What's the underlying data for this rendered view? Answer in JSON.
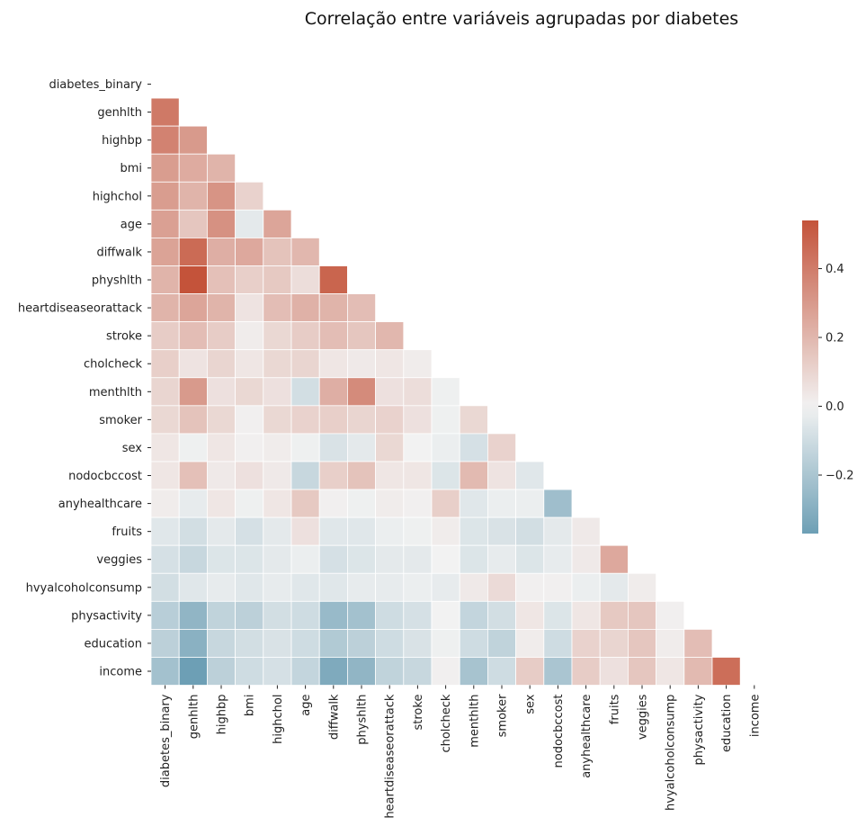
{
  "chart_data": {
    "type": "heatmap",
    "title": "Correlação entre variáveis agrupadas por diabetes",
    "variables": [
      "diabetes_binary",
      "genhlth",
      "highbp",
      "bmi",
      "highchol",
      "age",
      "diffwalk",
      "physhlth",
      "heartdiseaseorattack",
      "stroke",
      "cholcheck",
      "menthlth",
      "smoker",
      "sex",
      "nodocbccost",
      "anyhealthcare",
      "fruits",
      "veggies",
      "hvyalcoholconsump",
      "physactivity",
      "education",
      "income"
    ],
    "mask": "upper-triangle-and-diagonal",
    "values": [
      [],
      [
        0.41
      ],
      [
        0.38,
        0.3
      ],
      [
        0.29,
        0.24,
        0.21
      ],
      [
        0.29,
        0.21,
        0.32,
        0.11
      ],
      [
        0.28,
        0.15,
        0.33,
        -0.04,
        0.26
      ],
      [
        0.27,
        0.46,
        0.23,
        0.25,
        0.16,
        0.2
      ],
      [
        0.21,
        0.54,
        0.17,
        0.12,
        0.14,
        0.07,
        0.48
      ],
      [
        0.21,
        0.26,
        0.21,
        0.05,
        0.18,
        0.22,
        0.21,
        0.18
      ],
      [
        0.13,
        0.18,
        0.13,
        0.02,
        0.09,
        0.13,
        0.18,
        0.15,
        0.2
      ],
      [
        0.12,
        0.05,
        0.1,
        0.04,
        0.09,
        0.1,
        0.04,
        0.03,
        0.04,
        0.02
      ],
      [
        0.1,
        0.3,
        0.06,
        0.09,
        0.06,
        -0.09,
        0.23,
        0.35,
        0.06,
        0.07,
        -0.01
      ],
      [
        0.09,
        0.16,
        0.09,
        0.01,
        0.09,
        0.11,
        0.12,
        0.1,
        0.11,
        0.06,
        -0.01,
        0.09
      ],
      [
        0.04,
        -0.01,
        0.04,
        0.01,
        0.02,
        -0.01,
        -0.07,
        -0.04,
        0.09,
        0.0,
        -0.02,
        -0.08,
        0.11
      ],
      [
        0.04,
        0.17,
        0.03,
        0.06,
        0.03,
        -0.12,
        0.12,
        0.16,
        0.04,
        0.04,
        -0.06,
        0.19,
        0.05,
        -0.05
      ],
      [
        0.02,
        -0.03,
        0.04,
        -0.01,
        0.04,
        0.14,
        0.01,
        -0.01,
        0.02,
        0.01,
        0.12,
        -0.05,
        -0.02,
        -0.02,
        -0.23
      ],
      [
        -0.05,
        -0.09,
        -0.04,
        -0.08,
        -0.04,
        0.06,
        -0.05,
        -0.05,
        -0.02,
        -0.01,
        0.02,
        -0.06,
        -0.07,
        -0.09,
        -0.04,
        0.03
      ],
      [
        -0.08,
        -0.12,
        -0.06,
        -0.06,
        -0.04,
        -0.02,
        -0.08,
        -0.06,
        -0.04,
        -0.04,
        0.0,
        -0.06,
        -0.03,
        -0.06,
        -0.03,
        0.03,
        0.25
      ],
      [
        -0.09,
        -0.05,
        -0.03,
        -0.05,
        -0.03,
        -0.05,
        -0.05,
        -0.03,
        -0.03,
        -0.02,
        -0.03,
        0.03,
        0.08,
        0.01,
        0.01,
        -0.02,
        -0.04,
        0.02
      ],
      [
        -0.16,
        -0.27,
        -0.14,
        -0.15,
        -0.09,
        -0.1,
        -0.25,
        -0.22,
        -0.1,
        -0.08,
        0.0,
        -0.13,
        -0.09,
        0.04,
        -0.06,
        0.04,
        0.14,
        0.15,
        0.01
      ],
      [
        -0.15,
        -0.29,
        -0.12,
        -0.09,
        -0.07,
        -0.1,
        -0.18,
        -0.15,
        -0.1,
        -0.07,
        -0.01,
        -0.1,
        -0.14,
        0.02,
        -0.1,
        0.11,
        0.1,
        0.15,
        0.02,
        0.18
      ],
      [
        -0.22,
        -0.37,
        -0.15,
        -0.1,
        -0.08,
        -0.13,
        -0.32,
        -0.27,
        -0.14,
        -0.12,
        0.01,
        -0.21,
        -0.1,
        0.13,
        -0.2,
        0.13,
        0.06,
        0.15,
        0.04,
        0.19,
        0.45
      ]
    ],
    "colorbar": {
      "min": -0.37,
      "max": 0.54,
      "ticks": [
        "−0.2",
        "0.0",
        "0.2",
        "0.4"
      ],
      "tick_values": [
        -0.2,
        0.0,
        0.2,
        0.4
      ]
    },
    "colors": {
      "negative": "#6d9fb5",
      "center": "#f2f2f2",
      "positive": "#c4533a",
      "cell_border": "#ffffff"
    }
  }
}
